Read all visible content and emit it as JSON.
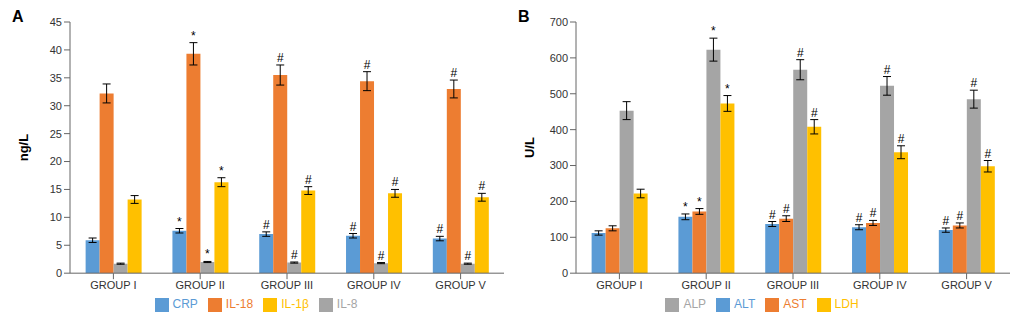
{
  "chart_data": [
    {
      "type": "bar",
      "title": "A",
      "y_label": "ng/L",
      "categories": [
        "GROUP I",
        "GROUP II",
        "GROUP III",
        "GROUP IV",
        "GROUP V"
      ],
      "ylim": [
        0,
        45
      ],
      "yticks": [
        0,
        5,
        10,
        15,
        20,
        25,
        30,
        35,
        40,
        45
      ],
      "grid": false,
      "legend": "bottom",
      "series": [
        {
          "name": "CRP",
          "color": "#5B9BD5",
          "values": [
            5.9,
            7.6,
            7.0,
            6.7,
            6.2
          ],
          "errors": [
            0.4,
            0.4,
            0.4,
            0.4,
            0.4
          ],
          "annotations": [
            null,
            "*",
            "#",
            "#",
            "#"
          ]
        },
        {
          "name": "IL-18",
          "color": "#ED7D31",
          "values": [
            32.2,
            39.3,
            35.5,
            34.4,
            33.0
          ],
          "errors": [
            1.7,
            2.0,
            1.8,
            1.7,
            1.6
          ],
          "annotations": [
            null,
            "*",
            "#",
            "#",
            "#"
          ]
        },
        {
          "name": "IL-8",
          "color": "#A5A5A5",
          "values": [
            1.7,
            2.0,
            1.9,
            1.8,
            1.7
          ],
          "errors": [
            0.1,
            0.1,
            0.1,
            0.1,
            0.1
          ],
          "annotations": [
            null,
            "*",
            "#",
            "#",
            "#"
          ]
        },
        {
          "name": "IL-1β",
          "color": "#FFC000",
          "values": [
            13.2,
            16.3,
            14.8,
            14.3,
            13.6
          ],
          "errors": [
            0.7,
            0.8,
            0.7,
            0.7,
            0.7
          ],
          "annotations": [
            null,
            "*",
            "#",
            "#",
            "#"
          ]
        }
      ]
    },
    {
      "type": "bar",
      "title": "B",
      "y_label": "U/L",
      "categories": [
        "GROUP I",
        "GROUP II",
        "GROUP III",
        "GROUP IV",
        "GROUP V"
      ],
      "ylim": [
        0,
        700
      ],
      "yticks": [
        0,
        100,
        200,
        300,
        400,
        500,
        600,
        700
      ],
      "grid": false,
      "legend": "bottom",
      "series": [
        {
          "name": "ALT",
          "color": "#5B9BD5",
          "values": [
            112,
            157,
            137,
            128,
            120
          ],
          "errors": [
            6,
            8,
            7,
            7,
            6
          ],
          "annotations": [
            null,
            "*",
            "#",
            "#",
            "#"
          ]
        },
        {
          "name": "AST",
          "color": "#ED7D31",
          "values": [
            125,
            172,
            152,
            140,
            133
          ],
          "errors": [
            7,
            8,
            8,
            7,
            7
          ],
          "annotations": [
            null,
            "*",
            "#",
            "#",
            "#"
          ]
        },
        {
          "name": "ALP",
          "color": "#A5A5A5",
          "values": [
            453,
            623,
            567,
            522,
            485
          ],
          "errors": [
            25,
            32,
            28,
            26,
            25
          ],
          "annotations": [
            null,
            "*",
            "#",
            "#",
            "#"
          ]
        },
        {
          "name": "LDH",
          "color": "#FFC000",
          "values": [
            222,
            473,
            408,
            337,
            298
          ],
          "errors": [
            12,
            22,
            20,
            18,
            16
          ],
          "annotations": [
            null,
            "*",
            "#",
            "#",
            "#"
          ]
        }
      ]
    }
  ]
}
